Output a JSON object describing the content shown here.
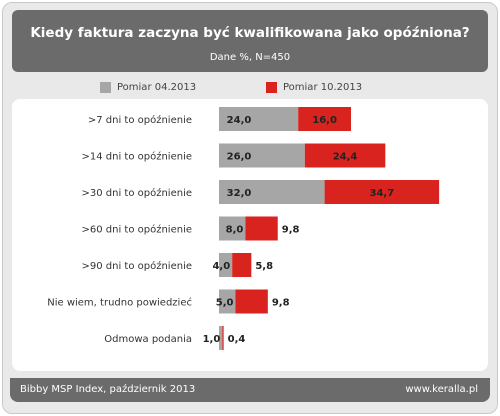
{
  "header": {
    "title": "Kiedy faktura zaczyna być kwalifikowana jako opóźniona?",
    "subtitle": "Dane %, N=450"
  },
  "footer": {
    "left": "Bibby MSP Index, październik 2013",
    "right": "www.keralla.pl"
  },
  "colors": {
    "series1": "#a6a6a6",
    "series2": "#d9231f"
  },
  "chart_data": {
    "type": "bar",
    "orientation": "horizontal",
    "stacked": true,
    "categories": [
      ">7 dni to opóźnienie",
      ">14 dni to opóźnienie",
      ">30 dni to opóźnienie",
      ">60 dni to opóźnienie",
      ">90 dni to opóźnienie",
      "Nie wiem,  trudno powiedzieć",
      "Odmowa podania"
    ],
    "series": [
      {
        "name": "Pomiar 04.2013",
        "values": [
          24.0,
          26.0,
          32.0,
          8.0,
          4.0,
          5.0,
          1.0
        ]
      },
      {
        "name": "Pomiar 10.2013",
        "values": [
          16.0,
          24.4,
          34.7,
          9.8,
          5.8,
          9.8,
          0.4
        ]
      }
    ],
    "value_labels": [
      [
        "24,0",
        "26,0",
        "32,0",
        "8,0",
        "4,0",
        "5,0",
        "1,0"
      ],
      [
        "16,0",
        "24,4",
        "34,7",
        "9,8",
        "5,8",
        "9,8",
        "0,4"
      ]
    ],
    "legend": "top"
  }
}
